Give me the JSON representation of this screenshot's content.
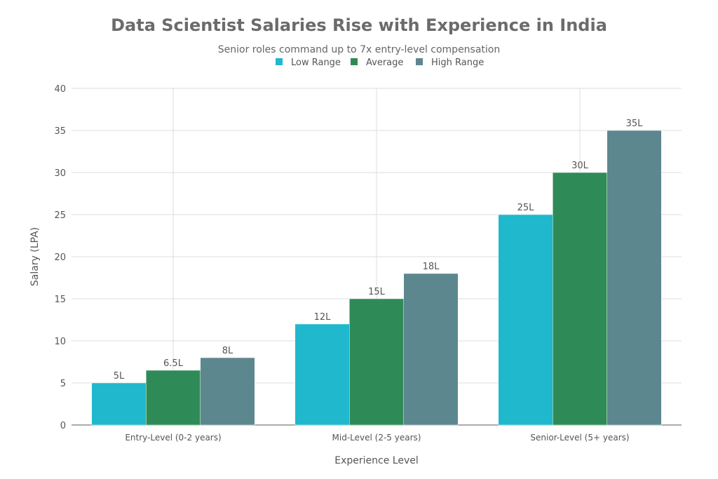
{
  "chart_data": {
    "type": "bar",
    "title": "Data Scientist Salaries Rise with Experience in India",
    "subtitle": "Senior roles command up to 7x entry-level compensation",
    "xlabel": "Experience Level",
    "ylabel": "Salary (LPA)",
    "ylim": [
      0,
      40
    ],
    "yticks": [
      0,
      5,
      10,
      15,
      20,
      25,
      30,
      35,
      40
    ],
    "grid": true,
    "legend_placement": "top-center",
    "categories": [
      "Entry-Level (0-2 years)",
      "Mid-Level (2-5 years)",
      "Senior-Level (5+ years)"
    ],
    "series": [
      {
        "name": "Low Range",
        "color": "#1FB8CD",
        "values": [
          5,
          12,
          25
        ],
        "labels": [
          "5L",
          "12L",
          "25L"
        ]
      },
      {
        "name": "Average",
        "color": "#2E8B57",
        "values": [
          6.5,
          15,
          30
        ],
        "labels": [
          "6.5L",
          "15L",
          "30L"
        ]
      },
      {
        "name": "High Range",
        "color": "#5D878F",
        "values": [
          8,
          18,
          35
        ],
        "labels": [
          "8L",
          "18L",
          "35L"
        ]
      }
    ]
  }
}
